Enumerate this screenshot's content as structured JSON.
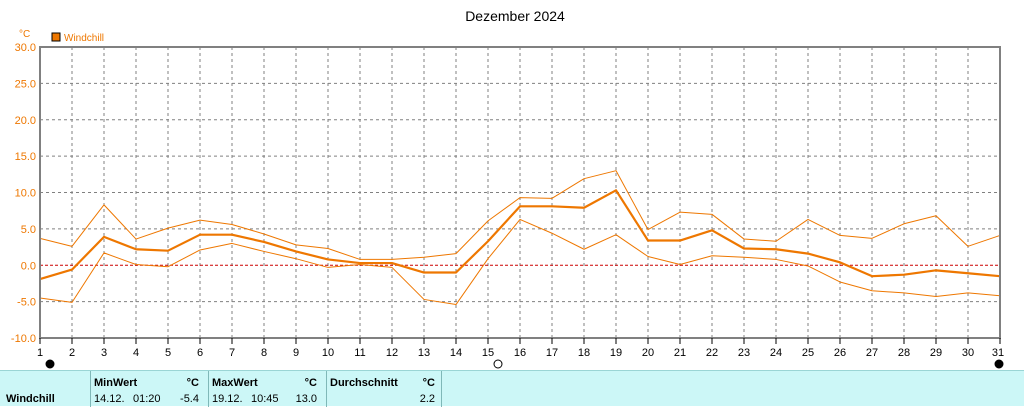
{
  "chart_data": {
    "type": "line",
    "title": "Dezember 2024",
    "yunit": "°C",
    "ylim": [
      -10,
      30
    ],
    "yticks": [
      "30.0",
      "25.0",
      "20.0",
      "15.0",
      "10.0",
      "5.0",
      "0.0",
      "-5.0",
      "-10.0"
    ],
    "x": [
      1,
      2,
      3,
      4,
      5,
      6,
      7,
      8,
      9,
      10,
      11,
      12,
      13,
      14,
      15,
      16,
      17,
      18,
      19,
      20,
      21,
      22,
      23,
      24,
      25,
      26,
      27,
      28,
      29,
      30,
      31
    ],
    "grid": true,
    "legend": "top-left",
    "series": [
      {
        "name": "Windchill",
        "role": "avg",
        "color": "#ee7700",
        "values": [
          -1.9,
          -0.6,
          3.9,
          2.2,
          2.0,
          4.2,
          4.2,
          3.2,
          1.9,
          0.8,
          0.3,
          0.3,
          -1.0,
          -1.0,
          3.3,
          8.1,
          8.1,
          7.9,
          10.3,
          3.4,
          3.4,
          4.8,
          2.3,
          2.2,
          1.6,
          0.4,
          -1.5,
          -1.3,
          -0.7,
          -1.1,
          -1.5
        ]
      },
      {
        "role": "max",
        "color": "#ee7700",
        "values": [
          3.7,
          2.6,
          8.3,
          3.6,
          5.1,
          6.2,
          5.6,
          4.3,
          2.8,
          2.3,
          0.8,
          0.8,
          1.1,
          1.6,
          6.1,
          9.3,
          9.2,
          11.9,
          13.0,
          4.9,
          7.3,
          7.0,
          3.6,
          3.3,
          6.3,
          4.1,
          3.7,
          5.7,
          6.8,
          2.6,
          4.1
        ]
      },
      {
        "role": "min",
        "color": "#ee7700",
        "values": [
          -4.5,
          -5.1,
          1.7,
          0.1,
          -0.2,
          2.1,
          3.0,
          1.9,
          0.9,
          -0.3,
          0.1,
          -0.3,
          -4.7,
          -5.4,
          0.9,
          6.3,
          4.4,
          2.2,
          4.2,
          1.2,
          0.1,
          1.3,
          1.1,
          0.8,
          -0.1,
          -2.3,
          -3.5,
          -3.8,
          -4.3,
          -3.8,
          -4.2
        ]
      }
    ],
    "zero_line_color": "#cc0000",
    "moon_phases": [
      {
        "day": 1,
        "phase": "new"
      },
      {
        "day": 15,
        "phase": "full"
      },
      {
        "day": 31,
        "phase": "new"
      }
    ]
  },
  "stats": {
    "row_label": "Windchill",
    "min": {
      "header": "MinWert",
      "unit": "°C",
      "date": "14.12.",
      "time": "01:20",
      "value": "-5.4"
    },
    "max": {
      "header": "MaxWert",
      "unit": "°C",
      "date": "19.12.",
      "time": "10:45",
      "value": "13.0"
    },
    "avg": {
      "header": "Durchschnitt",
      "unit": "°C",
      "value": "2.2"
    }
  }
}
